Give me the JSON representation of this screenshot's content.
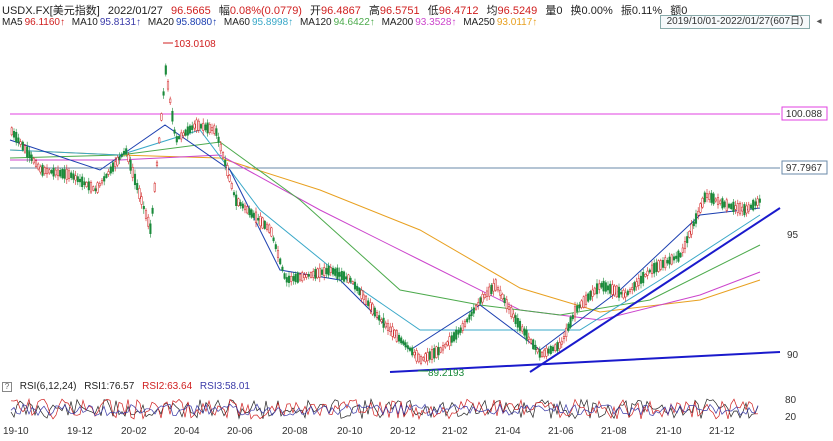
{
  "header": {
    "symbol": "USDX.FX[美元指数]",
    "date": "2022/01/27",
    "price": "96.5665",
    "change_label": "幅",
    "change": "0.08%(0.0779)",
    "open_label": "开",
    "open": "96.4867",
    "high_label": "高",
    "high": "96.5751",
    "low_label": "低",
    "low": "96.4712",
    "avg_label": "均",
    "avg": "96.5249",
    "vol_label": "量",
    "vol": "0",
    "turnover_label": "换",
    "turnover": "0.00%",
    "amp_label": "振",
    "amp": "0.11%",
    "amount_label": "额",
    "amount": "0"
  },
  "ma_legend": [
    {
      "label": "MA5",
      "value": "96.1160↑",
      "color": "#d02020"
    },
    {
      "label": "MA10",
      "value": "95.8131↑",
      "color": "#3a3aa8"
    },
    {
      "label": "MA20",
      "value": "95.8080↑",
      "color": "#1c3fb0"
    },
    {
      "label": "MA60",
      "value": "95.8998↑",
      "color": "#3aa8c8"
    },
    {
      "label": "MA120",
      "value": "94.6422↑",
      "color": "#4caa4c"
    },
    {
      "label": "MA200",
      "value": "93.3528↑",
      "color": "#cc44cc"
    },
    {
      "label": "MA250",
      "value": "93.0117↑",
      "color": "#e8a020"
    }
  ],
  "range_label": "2019/10/01-2022/01/27(607日)",
  "price_axis": {
    "ticks": [
      "95",
      "90"
    ]
  },
  "annotations": {
    "high_marker": "103.0108",
    "low_marker": "89.2193",
    "line_magenta": "100.088",
    "line_blue": "97.7967"
  },
  "rsi": {
    "title": "RSI(6,12,24)",
    "rsi1_label": "RSI1:",
    "rsi1": "76.57",
    "rsi2_label": "RSI2:",
    "rsi2": "63.64",
    "rsi3_label": "RSI3:",
    "rsi3": "58.01",
    "axis": [
      "80",
      "20"
    ]
  },
  "x_labels": [
    "19-10",
    "19-12",
    "20-02",
    "20-04",
    "20-06",
    "20-08",
    "20-10",
    "20-12",
    "21-02",
    "21-04",
    "21-06",
    "21-08",
    "21-10",
    "21-12"
  ],
  "colors": {
    "up": "#d02020",
    "down": "#1a8a3a",
    "magenta_line": "#e040e0",
    "blue_line": "#6a8aa8",
    "trend": "#1a1acc"
  }
}
